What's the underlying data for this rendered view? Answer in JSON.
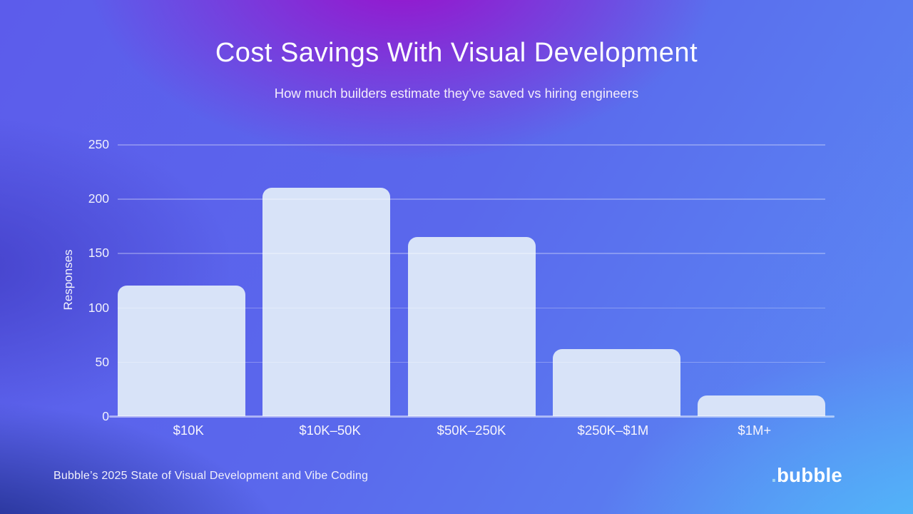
{
  "title": "Cost Savings With Visual Development",
  "subtitle": "How much builders estimate  they've saved vs hiring engineers",
  "chart_data": {
    "type": "bar",
    "title": "Cost Savings With Visual Development",
    "subtitle": "How much builders estimate  they've saved vs hiring engineers",
    "categories": [
      "$10K",
      "$10K–50K",
      "$50K–250K",
      "$250K–$1M",
      "$1M+"
    ],
    "values": [
      120,
      210,
      165,
      62,
      19
    ],
    "xlabel": "",
    "ylabel": "Responses",
    "ylim": [
      0,
      250
    ],
    "yticks": [
      0,
      50,
      100,
      150,
      200,
      250
    ],
    "grid": true,
    "legend": false,
    "bar_color": "#d8e3f8",
    "gridline_color": "rgba(255,255,255,0.28)",
    "axis_line_color": "rgba(255,255,255,0.5)"
  },
  "footer": {
    "source": "Bubble’s 2025 State of Visual Development and Vibe Coding",
    "logo_dot": ".",
    "logo_text": "bubble"
  },
  "colors": {
    "background_top_center": "#9a10cb",
    "background_top_corners": "#5c5ceb",
    "background_bottom_left": "#17267f",
    "background_bottom_right": "#4fc1fa",
    "text": "#ffffff",
    "bar": "#d8e3f8",
    "logo_dot": "#9fd4f2"
  }
}
